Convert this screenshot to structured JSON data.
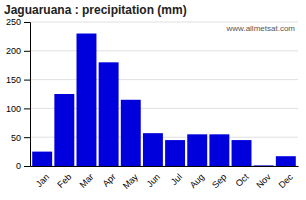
{
  "chart_data": {
    "type": "bar",
    "title": "Jaguaruana : precipitation (mm)",
    "categories": [
      "Jan",
      "Feb",
      "Mar",
      "Apr",
      "May",
      "Jun",
      "Jul",
      "Aug",
      "Sep",
      "Oct",
      "Nov",
      "Dec"
    ],
    "values": [
      25,
      125,
      230,
      180,
      115,
      57,
      45,
      55,
      55,
      45,
      1,
      17
    ],
    "color": "#0000dd",
    "ylim": [
      0,
      250
    ],
    "yticks": [
      0,
      50,
      100,
      150,
      200,
      250
    ],
    "grid": true,
    "annotations": [
      "www.allmetsat.com"
    ]
  }
}
